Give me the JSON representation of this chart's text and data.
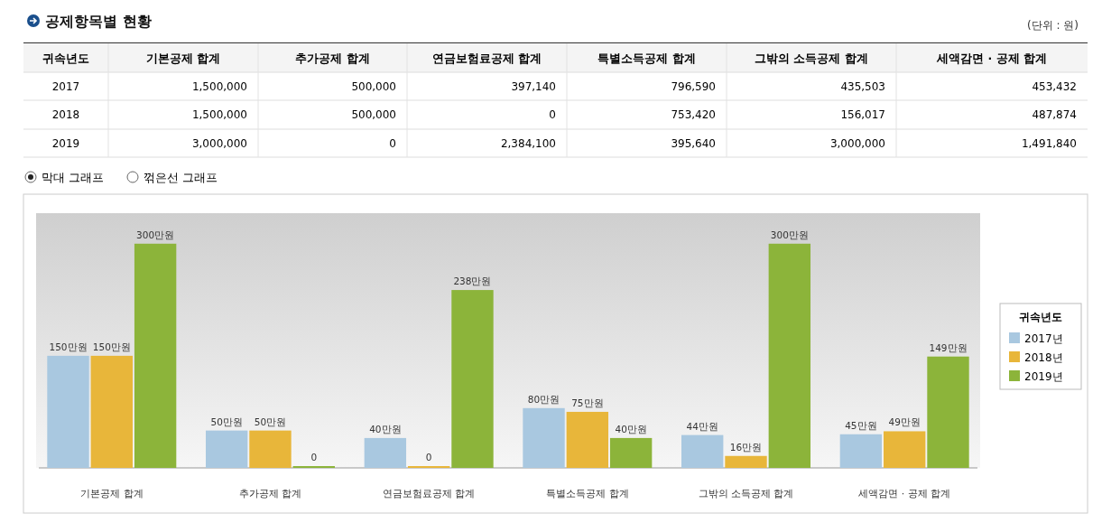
{
  "chart_data": {
    "type": "bar",
    "title": "공제항목별 현황",
    "categories": [
      "기본공제 합계",
      "추가공제 합계",
      "연금보험료공제 합계",
      "특별소득공제 합계",
      "그밖의 소득공제 합계",
      "세액감면 · 공제 합계"
    ],
    "series": [
      {
        "name": "2017년",
        "color": "#a9c8e0",
        "values": [
          150,
          50,
          40,
          80,
          44,
          45
        ],
        "value_labels": [
          "150만원",
          "50만원",
          "40만원",
          "80만원",
          "44만원",
          "45만원"
        ]
      },
      {
        "name": "2018년",
        "color": "#e8b63a",
        "values": [
          150,
          50,
          0,
          75,
          16,
          49
        ],
        "value_labels": [
          "150만원",
          "50만원",
          "0",
          "75만원",
          "16만원",
          "49만원"
        ]
      },
      {
        "name": "2019년",
        "color": "#8cb43a",
        "values": [
          300,
          0,
          238,
          40,
          300,
          149
        ],
        "value_labels": [
          "300만원",
          "0",
          "238만원",
          "40만원",
          "300만원",
          "149만원"
        ]
      }
    ],
    "legend_title": "귀속년도",
    "legend": "right",
    "tick_labels": "x",
    "annotations": [
      "(단위 : 원)",
      "막대 그래프",
      "꺾은선 그래프",
      "2017",
      "2018",
      "2019",
      "1,500,000",
      "500,000",
      "397,140",
      "796,590",
      "435,503",
      "453,432",
      "1,500,000",
      "500,000",
      "0",
      "753,420",
      "156,017",
      "487,874",
      "3,000,000",
      "0",
      "2,384,100",
      "395,640",
      "3,000,000",
      "1,491,840"
    ]
  }
}
